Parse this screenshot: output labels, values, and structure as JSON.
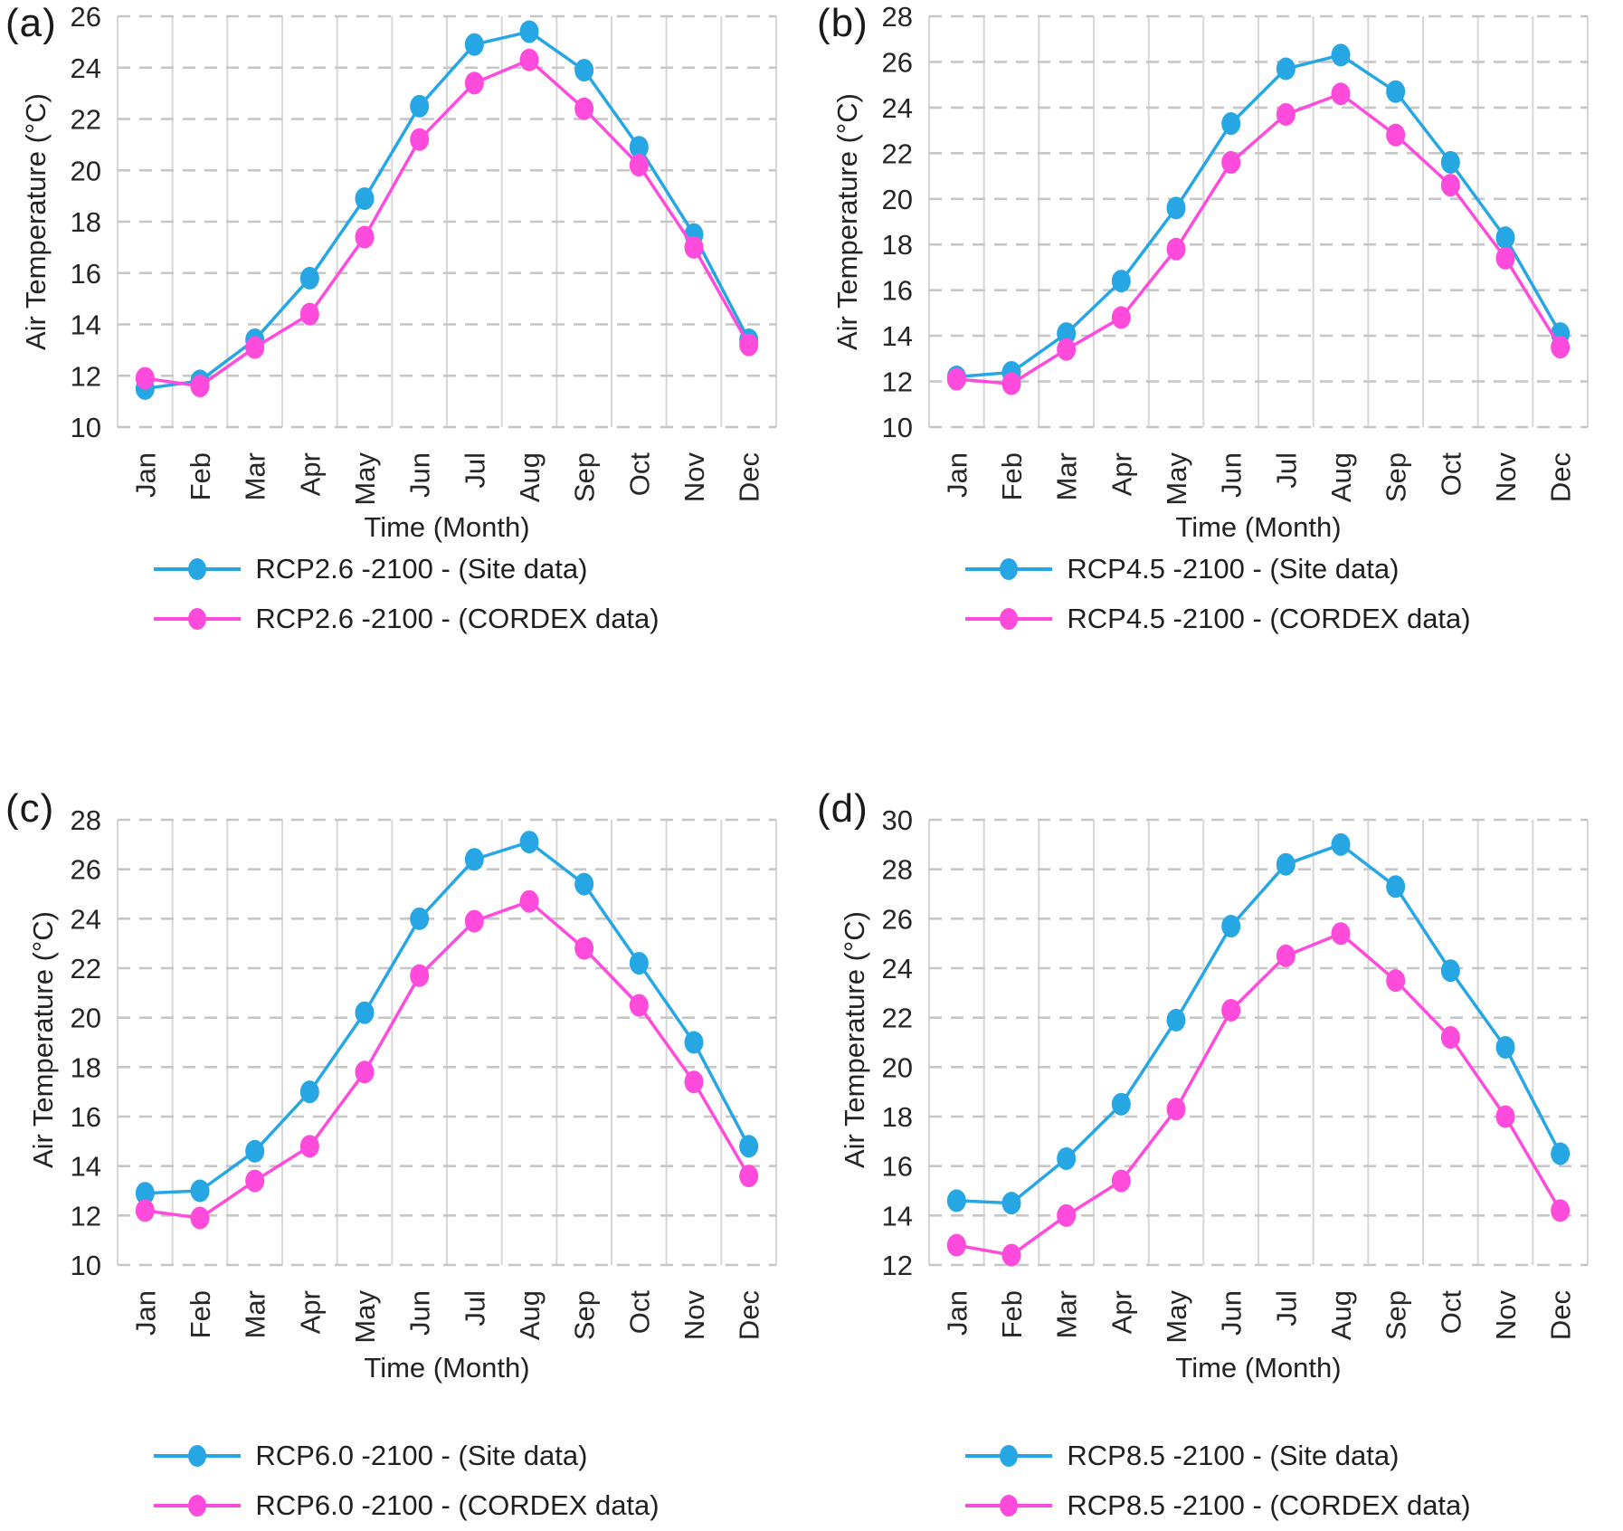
{
  "figure": {
    "x_axis_title": "Time (Month)",
    "y_axis_title": "Air Temperature (°C)"
  },
  "colors": {
    "site": "#26A7E3",
    "cordex": "#FF4BDB",
    "grid_vertical": "#d6d6d6",
    "grid_horizontal": "#c6c6c6",
    "tick_text": "#262626"
  },
  "chart_data": [
    {
      "type": "line",
      "panel_label": "(a)",
      "title": "",
      "xlabel": "Time (Month)",
      "ylabel": "Air Temperature (°C)",
      "ylim": [
        10,
        26
      ],
      "ytick_step": 2,
      "grid": true,
      "legend_position": "bottom",
      "categories": [
        "Jan",
        "Feb",
        "Mar",
        "Apr",
        "May",
        "Jun",
        "Jul",
        "Aug",
        "Sep",
        "Oct",
        "Nov",
        "Dec"
      ],
      "series": [
        {
          "name": "RCP2.6 -2100 - (Site data)",
          "color": "#26A7E3",
          "values": [
            11.5,
            11.8,
            13.4,
            15.8,
            18.9,
            22.5,
            24.9,
            25.4,
            23.9,
            20.9,
            17.5,
            13.4
          ]
        },
        {
          "name": "RCP2.6 -2100 - (CORDEX data)",
          "color": "#FF4BDB",
          "values": [
            11.9,
            11.6,
            13.1,
            14.4,
            17.4,
            21.2,
            23.4,
            24.3,
            22.4,
            20.2,
            17.0,
            13.2
          ]
        }
      ]
    },
    {
      "type": "line",
      "panel_label": "(b)",
      "title": "",
      "xlabel": "Time (Month)",
      "ylabel": "Air Temperature (°C)",
      "ylim": [
        10,
        28
      ],
      "ytick_step": 2,
      "grid": true,
      "legend_position": "bottom",
      "categories": [
        "Jan",
        "Feb",
        "Mar",
        "Apr",
        "May",
        "Jun",
        "Jul",
        "Aug",
        "Sep",
        "Oct",
        "Nov",
        "Dec"
      ],
      "series": [
        {
          "name": "RCP4.5 -2100 - (Site data)",
          "color": "#26A7E3",
          "values": [
            12.2,
            12.4,
            14.1,
            16.4,
            19.6,
            23.3,
            25.7,
            26.3,
            24.7,
            21.6,
            18.3,
            14.1
          ]
        },
        {
          "name": "RCP4.5 -2100 - (CORDEX data)",
          "color": "#FF4BDB",
          "values": [
            12.1,
            11.9,
            13.4,
            14.8,
            17.8,
            21.6,
            23.7,
            24.6,
            22.8,
            20.6,
            17.4,
            13.5
          ]
        }
      ]
    },
    {
      "type": "line",
      "panel_label": "(c)",
      "title": "",
      "xlabel": "Time (Month)",
      "ylabel": "Air Temperature (°C)",
      "ylim": [
        10,
        28
      ],
      "ytick_step": 2,
      "grid": true,
      "legend_position": "bottom",
      "categories": [
        "Jan",
        "Feb",
        "Mar",
        "Apr",
        "May",
        "Jun",
        "Jul",
        "Aug",
        "Sep",
        "Oct",
        "Nov",
        "Dec"
      ],
      "series": [
        {
          "name": "RCP6.0 -2100 - (Site data)",
          "color": "#26A7E3",
          "values": [
            12.9,
            13.0,
            14.6,
            17.0,
            20.2,
            24.0,
            26.4,
            27.1,
            25.4,
            22.2,
            19.0,
            14.8
          ]
        },
        {
          "name": "RCP6.0 -2100 - (CORDEX data)",
          "color": "#FF4BDB",
          "values": [
            12.2,
            11.9,
            13.4,
            14.8,
            17.8,
            21.7,
            23.9,
            24.7,
            22.8,
            20.5,
            17.4,
            13.6
          ]
        }
      ]
    },
    {
      "type": "line",
      "panel_label": "(d)",
      "title": "",
      "xlabel": "Time (Month)",
      "ylabel": "Air Temperature (°C)",
      "ylim": [
        12,
        30
      ],
      "ytick_step": 2,
      "grid": true,
      "legend_position": "bottom",
      "categories": [
        "Jan",
        "Feb",
        "Mar",
        "Apr",
        "May",
        "Jun",
        "Jul",
        "Aug",
        "Sep",
        "Oct",
        "Nov",
        "Dec"
      ],
      "series": [
        {
          "name": "RCP8.5 -2100 - (Site data)",
          "color": "#26A7E3",
          "values": [
            14.6,
            14.5,
            16.3,
            18.5,
            21.9,
            25.7,
            28.2,
            29.0,
            27.3,
            23.9,
            20.8,
            16.5
          ]
        },
        {
          "name": "RCP8.5 -2100 - (CORDEX data)",
          "color": "#FF4BDB",
          "values": [
            12.8,
            12.4,
            14.0,
            15.4,
            18.3,
            22.3,
            24.5,
            25.4,
            23.5,
            21.2,
            18.0,
            14.2
          ]
        }
      ]
    }
  ]
}
